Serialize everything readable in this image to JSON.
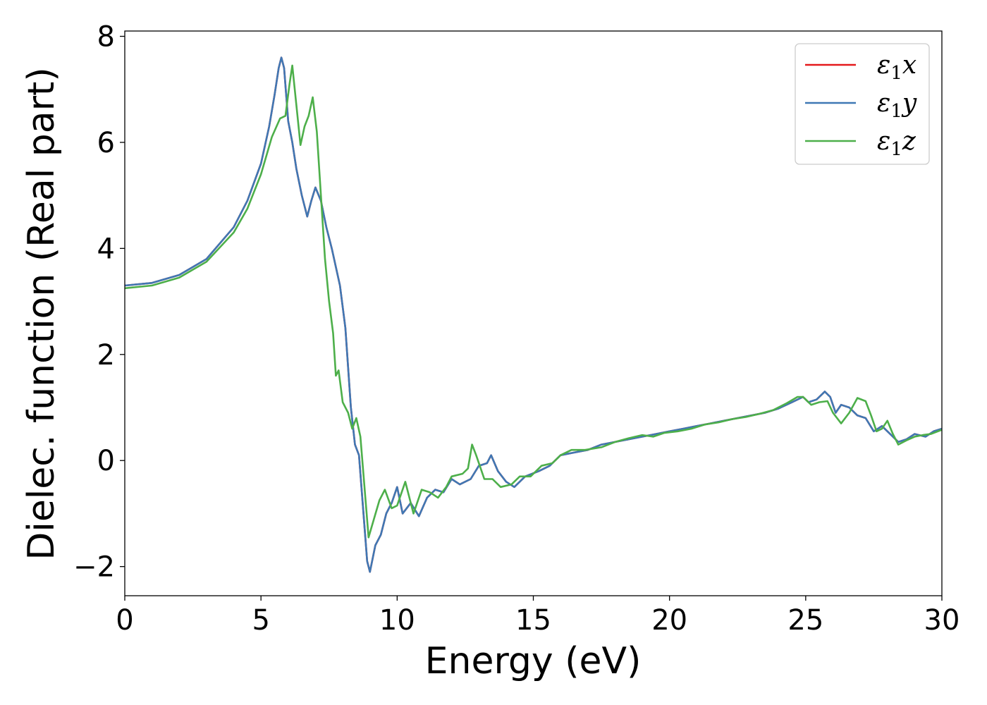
{
  "chart_data": {
    "type": "line",
    "xlabel": "Energy (eV)",
    "ylabel": "Dielec. function (Real part)",
    "xlim": [
      0,
      30
    ],
    "ylim": [
      -2.55,
      8.1
    ],
    "xticks": [
      0,
      5,
      10,
      15,
      20,
      25,
      30
    ],
    "yticks": [
      -2,
      0,
      2,
      4,
      6,
      8
    ],
    "xtick_labels": [
      "0",
      "5",
      "10",
      "15",
      "20",
      "25",
      "30"
    ],
    "ytick_labels": [
      "−2",
      "0",
      "2",
      "4",
      "6",
      "8"
    ],
    "grid": false,
    "legend_position": "top-right",
    "series": [
      {
        "name": "ε₁x",
        "legend_main": "ε",
        "legend_sub": "1",
        "legend_var": "x",
        "color": "#e41a1c",
        "points": [
          [
            0,
            3.3
          ],
          [
            1,
            3.35
          ],
          [
            2,
            3.5
          ],
          [
            3,
            3.8
          ],
          [
            4,
            4.4
          ],
          [
            4.5,
            4.9
          ],
          [
            5,
            5.6
          ],
          [
            5.3,
            6.3
          ],
          [
            5.5,
            6.9
          ],
          [
            5.65,
            7.4
          ],
          [
            5.75,
            7.6
          ],
          [
            5.85,
            7.4
          ],
          [
            6.0,
            6.4
          ],
          [
            6.15,
            6.0
          ],
          [
            6.3,
            5.5
          ],
          [
            6.5,
            5.0
          ],
          [
            6.7,
            4.6
          ],
          [
            6.85,
            4.9
          ],
          [
            7.0,
            5.15
          ],
          [
            7.2,
            4.9
          ],
          [
            7.4,
            4.4
          ],
          [
            7.6,
            4.0
          ],
          [
            7.9,
            3.3
          ],
          [
            8.1,
            2.5
          ],
          [
            8.3,
            1.0
          ],
          [
            8.45,
            0.3
          ],
          [
            8.6,
            0.1
          ],
          [
            8.75,
            -0.9
          ],
          [
            8.9,
            -1.9
          ],
          [
            9.0,
            -2.1
          ],
          [
            9.2,
            -1.6
          ],
          [
            9.4,
            -1.4
          ],
          [
            9.6,
            -1.0
          ],
          [
            9.8,
            -0.8
          ],
          [
            10.0,
            -0.5
          ],
          [
            10.2,
            -1.0
          ],
          [
            10.5,
            -0.8
          ],
          [
            10.8,
            -1.05
          ],
          [
            11.1,
            -0.7
          ],
          [
            11.4,
            -0.55
          ],
          [
            11.7,
            -0.6
          ],
          [
            12.0,
            -0.35
          ],
          [
            12.3,
            -0.45
          ],
          [
            12.7,
            -0.35
          ],
          [
            13.0,
            -0.1
          ],
          [
            13.3,
            -0.05
          ],
          [
            13.45,
            0.1
          ],
          [
            13.7,
            -0.2
          ],
          [
            14.0,
            -0.4
          ],
          [
            14.3,
            -0.5
          ],
          [
            14.7,
            -0.3
          ],
          [
            15.2,
            -0.2
          ],
          [
            15.6,
            -0.1
          ],
          [
            16.0,
            0.1
          ],
          [
            16.5,
            0.15
          ],
          [
            17.0,
            0.2
          ],
          [
            17.5,
            0.3
          ],
          [
            18.0,
            0.35
          ],
          [
            18.5,
            0.4
          ],
          [
            19.0,
            0.45
          ],
          [
            19.5,
            0.5
          ],
          [
            20.0,
            0.55
          ],
          [
            20.5,
            0.6
          ],
          [
            21.0,
            0.65
          ],
          [
            21.5,
            0.7
          ],
          [
            22.0,
            0.75
          ],
          [
            22.5,
            0.8
          ],
          [
            23.0,
            0.85
          ],
          [
            23.5,
            0.9
          ],
          [
            24.0,
            0.98
          ],
          [
            24.5,
            1.1
          ],
          [
            24.9,
            1.2
          ],
          [
            25.1,
            1.1
          ],
          [
            25.4,
            1.15
          ],
          [
            25.7,
            1.3
          ],
          [
            25.9,
            1.2
          ],
          [
            26.1,
            0.9
          ],
          [
            26.3,
            1.05
          ],
          [
            26.6,
            1.0
          ],
          [
            26.9,
            0.85
          ],
          [
            27.2,
            0.8
          ],
          [
            27.5,
            0.55
          ],
          [
            27.8,
            0.65
          ],
          [
            28.1,
            0.5
          ],
          [
            28.4,
            0.35
          ],
          [
            28.7,
            0.4
          ],
          [
            29.0,
            0.5
          ],
          [
            29.4,
            0.45
          ],
          [
            29.7,
            0.55
          ],
          [
            30.0,
            0.6
          ]
        ]
      },
      {
        "name": "ε₁y",
        "legend_main": "ε",
        "legend_sub": "1",
        "legend_var": "y",
        "color": "#3f78b4",
        "points": [
          [
            0,
            3.3
          ],
          [
            1,
            3.35
          ],
          [
            2,
            3.5
          ],
          [
            3,
            3.8
          ],
          [
            4,
            4.4
          ],
          [
            4.5,
            4.9
          ],
          [
            5,
            5.6
          ],
          [
            5.3,
            6.3
          ],
          [
            5.5,
            6.9
          ],
          [
            5.65,
            7.4
          ],
          [
            5.75,
            7.6
          ],
          [
            5.85,
            7.4
          ],
          [
            6.0,
            6.4
          ],
          [
            6.15,
            6.0
          ],
          [
            6.3,
            5.5
          ],
          [
            6.5,
            5.0
          ],
          [
            6.7,
            4.6
          ],
          [
            6.85,
            4.9
          ],
          [
            7.0,
            5.15
          ],
          [
            7.2,
            4.9
          ],
          [
            7.4,
            4.4
          ],
          [
            7.6,
            4.0
          ],
          [
            7.9,
            3.3
          ],
          [
            8.1,
            2.5
          ],
          [
            8.3,
            1.0
          ],
          [
            8.45,
            0.3
          ],
          [
            8.6,
            0.1
          ],
          [
            8.75,
            -0.9
          ],
          [
            8.9,
            -1.9
          ],
          [
            9.0,
            -2.1
          ],
          [
            9.2,
            -1.6
          ],
          [
            9.4,
            -1.4
          ],
          [
            9.6,
            -1.0
          ],
          [
            9.8,
            -0.8
          ],
          [
            10.0,
            -0.5
          ],
          [
            10.2,
            -1.0
          ],
          [
            10.5,
            -0.8
          ],
          [
            10.8,
            -1.05
          ],
          [
            11.1,
            -0.7
          ],
          [
            11.4,
            -0.55
          ],
          [
            11.7,
            -0.6
          ],
          [
            12.0,
            -0.35
          ],
          [
            12.3,
            -0.45
          ],
          [
            12.7,
            -0.35
          ],
          [
            13.0,
            -0.1
          ],
          [
            13.3,
            -0.05
          ],
          [
            13.45,
            0.1
          ],
          [
            13.7,
            -0.2
          ],
          [
            14.0,
            -0.4
          ],
          [
            14.3,
            -0.5
          ],
          [
            14.7,
            -0.3
          ],
          [
            15.2,
            -0.2
          ],
          [
            15.6,
            -0.1
          ],
          [
            16.0,
            0.1
          ],
          [
            16.5,
            0.15
          ],
          [
            17.0,
            0.2
          ],
          [
            17.5,
            0.3
          ],
          [
            18.0,
            0.35
          ],
          [
            18.5,
            0.4
          ],
          [
            19.0,
            0.45
          ],
          [
            19.5,
            0.5
          ],
          [
            20.0,
            0.55
          ],
          [
            20.5,
            0.6
          ],
          [
            21.0,
            0.65
          ],
          [
            21.5,
            0.7
          ],
          [
            22.0,
            0.75
          ],
          [
            22.5,
            0.8
          ],
          [
            23.0,
            0.85
          ],
          [
            23.5,
            0.9
          ],
          [
            24.0,
            0.98
          ],
          [
            24.5,
            1.1
          ],
          [
            24.9,
            1.2
          ],
          [
            25.1,
            1.1
          ],
          [
            25.4,
            1.15
          ],
          [
            25.7,
            1.3
          ],
          [
            25.9,
            1.2
          ],
          [
            26.1,
            0.9
          ],
          [
            26.3,
            1.05
          ],
          [
            26.6,
            1.0
          ],
          [
            26.9,
            0.85
          ],
          [
            27.2,
            0.8
          ],
          [
            27.5,
            0.55
          ],
          [
            27.8,
            0.65
          ],
          [
            28.1,
            0.5
          ],
          [
            28.4,
            0.35
          ],
          [
            28.7,
            0.4
          ],
          [
            29.0,
            0.5
          ],
          [
            29.4,
            0.45
          ],
          [
            29.7,
            0.55
          ],
          [
            30.0,
            0.6
          ]
        ]
      },
      {
        "name": "ε₁z",
        "legend_main": "ε",
        "legend_sub": "1",
        "legend_var": "z",
        "color": "#4daf4a",
        "points": [
          [
            0,
            3.25
          ],
          [
            1,
            3.3
          ],
          [
            2,
            3.45
          ],
          [
            3,
            3.75
          ],
          [
            4,
            4.3
          ],
          [
            4.5,
            4.75
          ],
          [
            5,
            5.4
          ],
          [
            5.4,
            6.1
          ],
          [
            5.7,
            6.45
          ],
          [
            5.9,
            6.5
          ],
          [
            6.05,
            7.1
          ],
          [
            6.15,
            7.45
          ],
          [
            6.3,
            6.7
          ],
          [
            6.45,
            5.95
          ],
          [
            6.6,
            6.3
          ],
          [
            6.75,
            6.5
          ],
          [
            6.9,
            6.85
          ],
          [
            7.05,
            6.2
          ],
          [
            7.2,
            5.0
          ],
          [
            7.35,
            3.8
          ],
          [
            7.5,
            3.0
          ],
          [
            7.65,
            2.4
          ],
          [
            7.75,
            1.6
          ],
          [
            7.85,
            1.7
          ],
          [
            8.0,
            1.1
          ],
          [
            8.2,
            0.9
          ],
          [
            8.35,
            0.6
          ],
          [
            8.5,
            0.8
          ],
          [
            8.65,
            0.45
          ],
          [
            8.8,
            -0.5
          ],
          [
            8.95,
            -1.45
          ],
          [
            9.15,
            -1.1
          ],
          [
            9.35,
            -0.75
          ],
          [
            9.55,
            -0.55
          ],
          [
            9.8,
            -0.9
          ],
          [
            10.0,
            -0.85
          ],
          [
            10.3,
            -0.4
          ],
          [
            10.6,
            -1.0
          ],
          [
            10.9,
            -0.55
          ],
          [
            11.2,
            -0.6
          ],
          [
            11.5,
            -0.7
          ],
          [
            11.8,
            -0.5
          ],
          [
            12.0,
            -0.3
          ],
          [
            12.4,
            -0.25
          ],
          [
            12.6,
            -0.15
          ],
          [
            12.75,
            0.3
          ],
          [
            12.9,
            0.1
          ],
          [
            13.2,
            -0.35
          ],
          [
            13.5,
            -0.35
          ],
          [
            13.8,
            -0.5
          ],
          [
            14.2,
            -0.45
          ],
          [
            14.5,
            -0.3
          ],
          [
            14.9,
            -0.3
          ],
          [
            15.3,
            -0.1
          ],
          [
            15.7,
            -0.05
          ],
          [
            16.0,
            0.1
          ],
          [
            16.4,
            0.2
          ],
          [
            16.9,
            0.2
          ],
          [
            17.5,
            0.25
          ],
          [
            18.0,
            0.35
          ],
          [
            18.5,
            0.42
          ],
          [
            19.0,
            0.48
          ],
          [
            19.4,
            0.45
          ],
          [
            19.8,
            0.52
          ],
          [
            20.3,
            0.55
          ],
          [
            20.8,
            0.6
          ],
          [
            21.3,
            0.68
          ],
          [
            21.8,
            0.72
          ],
          [
            22.3,
            0.78
          ],
          [
            22.8,
            0.82
          ],
          [
            23.3,
            0.88
          ],
          [
            23.8,
            0.95
          ],
          [
            24.3,
            1.08
          ],
          [
            24.7,
            1.2
          ],
          [
            24.9,
            1.2
          ],
          [
            25.2,
            1.05
          ],
          [
            25.5,
            1.1
          ],
          [
            25.8,
            1.12
          ],
          [
            26.0,
            0.9
          ],
          [
            26.3,
            0.7
          ],
          [
            26.6,
            0.9
          ],
          [
            26.9,
            1.18
          ],
          [
            27.2,
            1.12
          ],
          [
            27.4,
            0.85
          ],
          [
            27.6,
            0.55
          ],
          [
            27.8,
            0.6
          ],
          [
            28.0,
            0.75
          ],
          [
            28.2,
            0.5
          ],
          [
            28.4,
            0.3
          ],
          [
            28.7,
            0.38
          ],
          [
            29.0,
            0.45
          ],
          [
            29.3,
            0.48
          ],
          [
            29.6,
            0.5
          ],
          [
            30.0,
            0.58
          ]
        ]
      }
    ]
  }
}
